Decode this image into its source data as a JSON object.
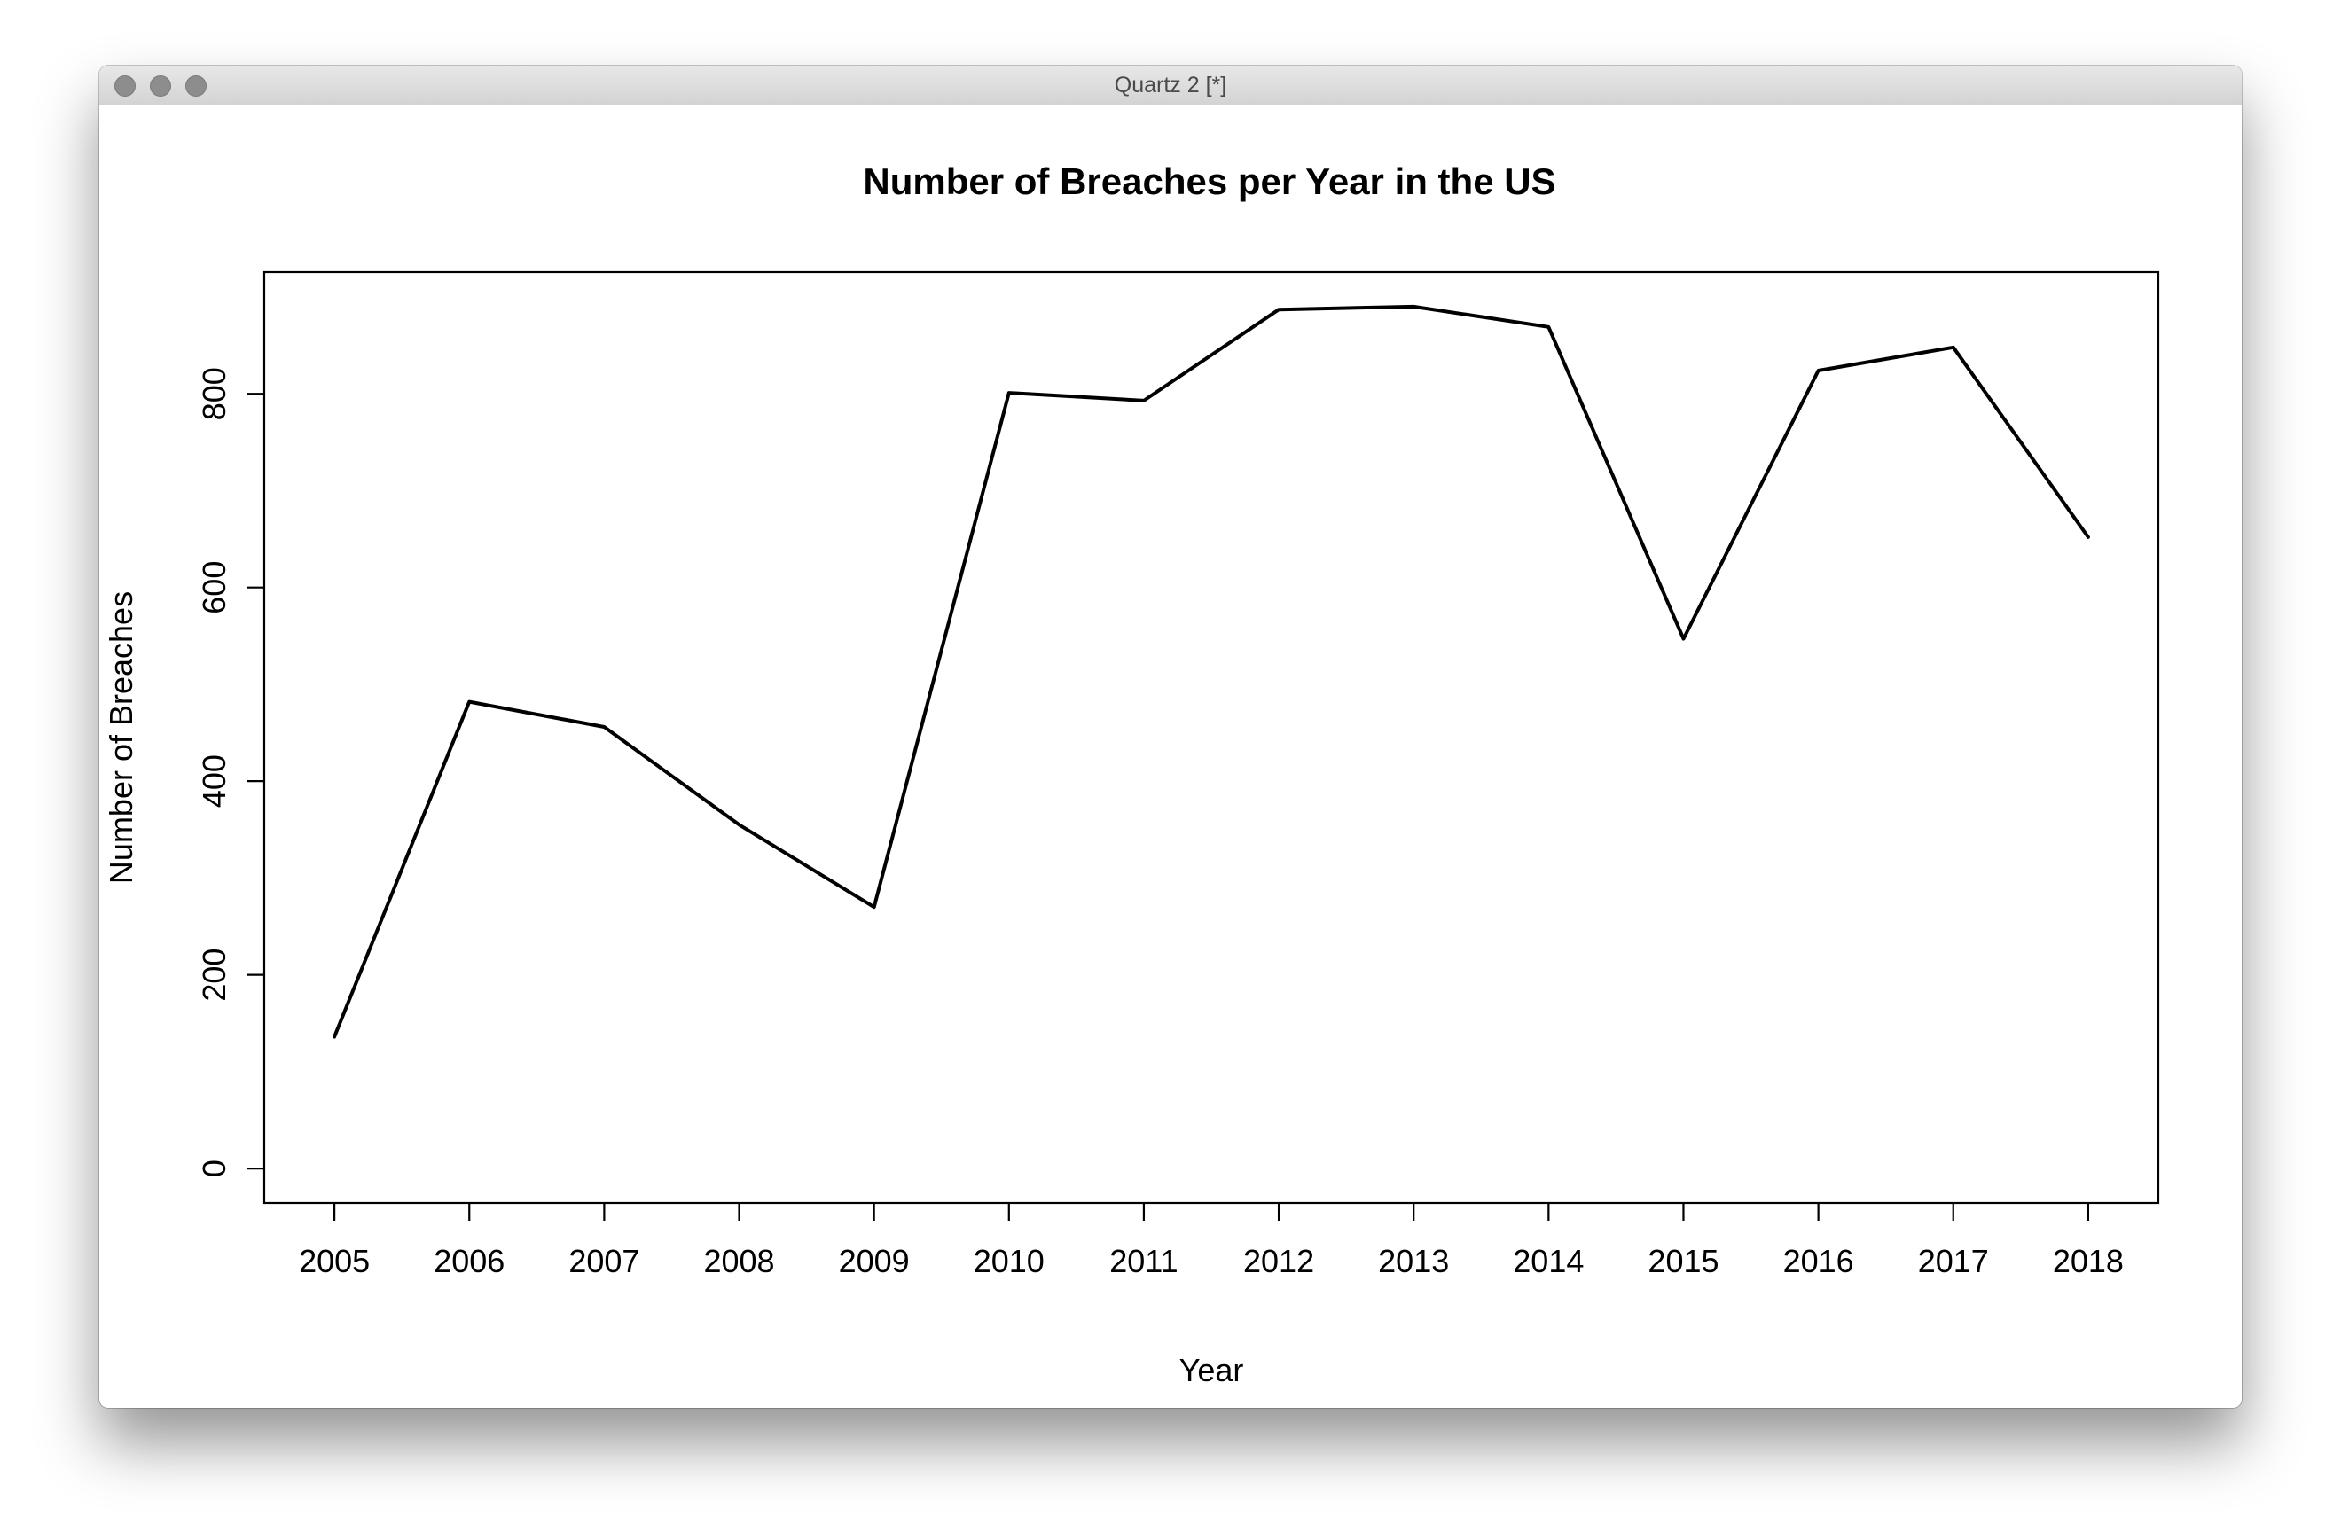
{
  "window": {
    "title": "Quartz 2 [*]",
    "buttons": [
      "close",
      "minimize",
      "zoom"
    ]
  },
  "chart_data": {
    "type": "line",
    "title": "Number of Breaches per Year in the US",
    "xlabel": "Year",
    "ylabel": "Number of Breaches",
    "x": [
      2005,
      2006,
      2007,
      2008,
      2009,
      2010,
      2011,
      2012,
      2013,
      2014,
      2015,
      2016,
      2017,
      2018
    ],
    "y": [
      136,
      482,
      456,
      355,
      270,
      801,
      793,
      887,
      890,
      869,
      547,
      824,
      848,
      652
    ],
    "xticks": [
      "2005",
      "2006",
      "2007",
      "2008",
      "2009",
      "2010",
      "2011",
      "2012",
      "2013",
      "2014",
      "2015",
      "2016",
      "2017",
      "2018"
    ],
    "yticks": [
      0,
      200,
      400,
      600,
      800
    ],
    "xlim": [
      2004.48,
      2018.52
    ],
    "ylim": [
      -35.6,
      925.6
    ],
    "grid": false,
    "legend": "none",
    "line_color": "#000000"
  }
}
